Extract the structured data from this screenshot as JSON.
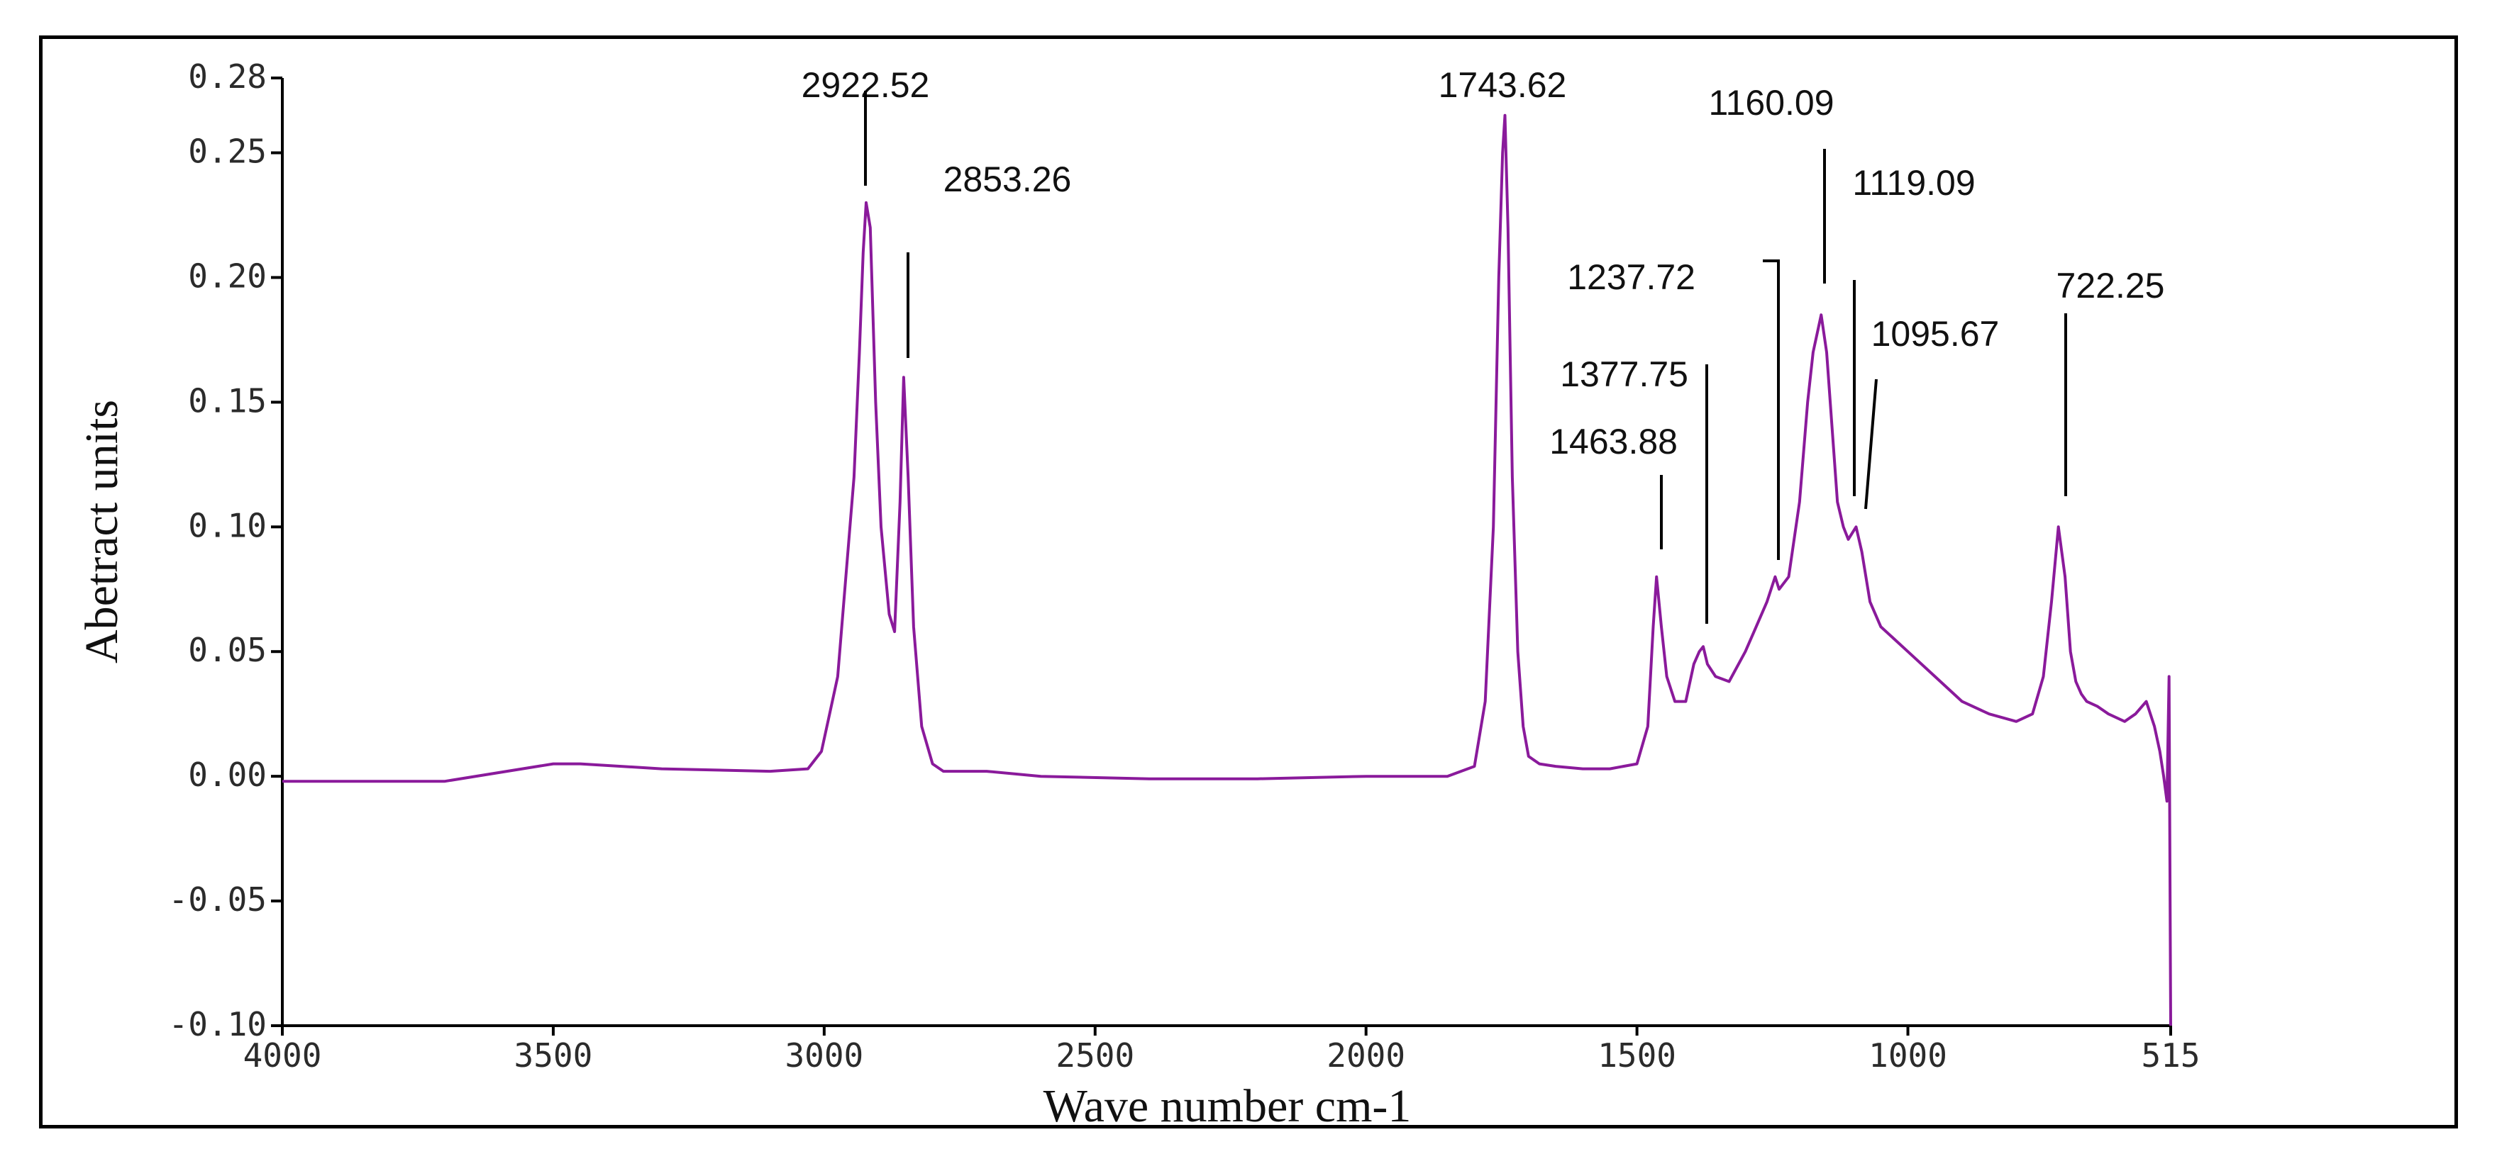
{
  "chart_data": {
    "type": "line",
    "title": "",
    "xlabel": "Wave number cm-1",
    "ylabel": "Abetract units",
    "xlim": [
      4000,
      515
    ],
    "ylim": [
      -0.1,
      0.28
    ],
    "x_ticks": [
      4000,
      3500,
      3000,
      2500,
      2000,
      1500,
      1000,
      515
    ],
    "x_tick_labels": [
      "4000",
      "3500",
      "3000",
      "2500",
      "2000",
      "1500",
      "1000",
      "515"
    ],
    "y_ticks": [
      0.28,
      0.25,
      0.2,
      0.15,
      0.1,
      0.05,
      0.0,
      -0.05,
      -0.1
    ],
    "y_tick_labels": [
      "0.28",
      "0.25",
      "0.20",
      "0.15",
      "0.10",
      "0.05",
      "0.00",
      "-0.05",
      "-0.10"
    ],
    "grid": false,
    "legend": "none",
    "line_color": "#8a1a9b",
    "series": [
      {
        "x": [
          4000,
          3700,
          3500,
          3450,
          3300,
          3100,
          3030,
          3005,
          2990,
          2975,
          2960,
          2945,
          2935,
          2928,
          2922.52,
          2915,
          2905,
          2895,
          2880,
          2870,
          2860,
          2853.26,
          2845,
          2835,
          2820,
          2800,
          2780,
          2700,
          2600,
          2400,
          2200,
          2000,
          1850,
          1800,
          1780,
          1765,
          1755,
          1748,
          1743.62,
          1738,
          1730,
          1720,
          1710,
          1700,
          1680,
          1650,
          1600,
          1550,
          1500,
          1480,
          1470,
          1463.88,
          1455,
          1445,
          1430,
          1410,
          1395,
          1385,
          1377.75,
          1370,
          1355,
          1330,
          1300,
          1280,
          1260,
          1245,
          1237.72,
          1220,
          1200,
          1185,
          1175,
          1165,
          1160.09,
          1150,
          1140,
          1130,
          1119.09,
          1110,
          1095.67,
          1085,
          1070,
          1050,
          1000,
          950,
          900,
          850,
          800,
          770,
          750,
          735,
          722.25,
          710,
          700,
          690,
          680,
          670,
          650,
          630,
          600,
          580,
          560,
          545,
          535,
          528,
          522,
          518,
          515
        ],
        "y": [
          -0.002,
          -0.002,
          0.005,
          0.005,
          0.003,
          0.002,
          0.003,
          0.01,
          0.025,
          0.04,
          0.08,
          0.12,
          0.17,
          0.21,
          0.23,
          0.22,
          0.15,
          0.1,
          0.065,
          0.058,
          0.11,
          0.16,
          0.12,
          0.06,
          0.02,
          0.005,
          0.002,
          0.002,
          0.0,
          -0.001,
          -0.001,
          0.0,
          0.0,
          0.004,
          0.03,
          0.1,
          0.2,
          0.25,
          0.265,
          0.22,
          0.12,
          0.05,
          0.02,
          0.008,
          0.005,
          0.004,
          0.003,
          0.003,
          0.005,
          0.02,
          0.06,
          0.08,
          0.06,
          0.04,
          0.03,
          0.03,
          0.045,
          0.05,
          0.052,
          0.045,
          0.04,
          0.038,
          0.05,
          0.06,
          0.07,
          0.08,
          0.075,
          0.08,
          0.11,
          0.15,
          0.17,
          0.18,
          0.185,
          0.17,
          0.14,
          0.11,
          0.1,
          0.095,
          0.1,
          0.09,
          0.07,
          0.06,
          0.05,
          0.04,
          0.03,
          0.025,
          0.022,
          0.025,
          0.04,
          0.07,
          0.1,
          0.08,
          0.05,
          0.038,
          0.033,
          0.03,
          0.028,
          0.025,
          0.022,
          0.025,
          0.03,
          0.02,
          0.01,
          0.0,
          -0.01,
          0.04,
          -0.1
        ]
      }
    ],
    "annotations": [
      {
        "text": "2922.52",
        "x": 2922.52,
        "y": 0.23
      },
      {
        "text": "2853.26",
        "x": 2853.26,
        "y": 0.16
      },
      {
        "text": "1743.62",
        "x": 1743.62,
        "y": 0.265
      },
      {
        "text": "1160.09",
        "x": 1160.09,
        "y": 0.185
      },
      {
        "text": "1119.09",
        "x": 1119.09,
        "y": 0.1
      },
      {
        "text": "1237.72",
        "x": 1237.72,
        "y": 0.08
      },
      {
        "text": "1377.75",
        "x": 1377.75,
        "y": 0.052
      },
      {
        "text": "1463.88",
        "x": 1463.88,
        "y": 0.08
      },
      {
        "text": "1095.67",
        "x": 1095.67,
        "y": 0.1
      },
      {
        "text": "722.25",
        "x": 722.25,
        "y": 0.1
      }
    ]
  }
}
